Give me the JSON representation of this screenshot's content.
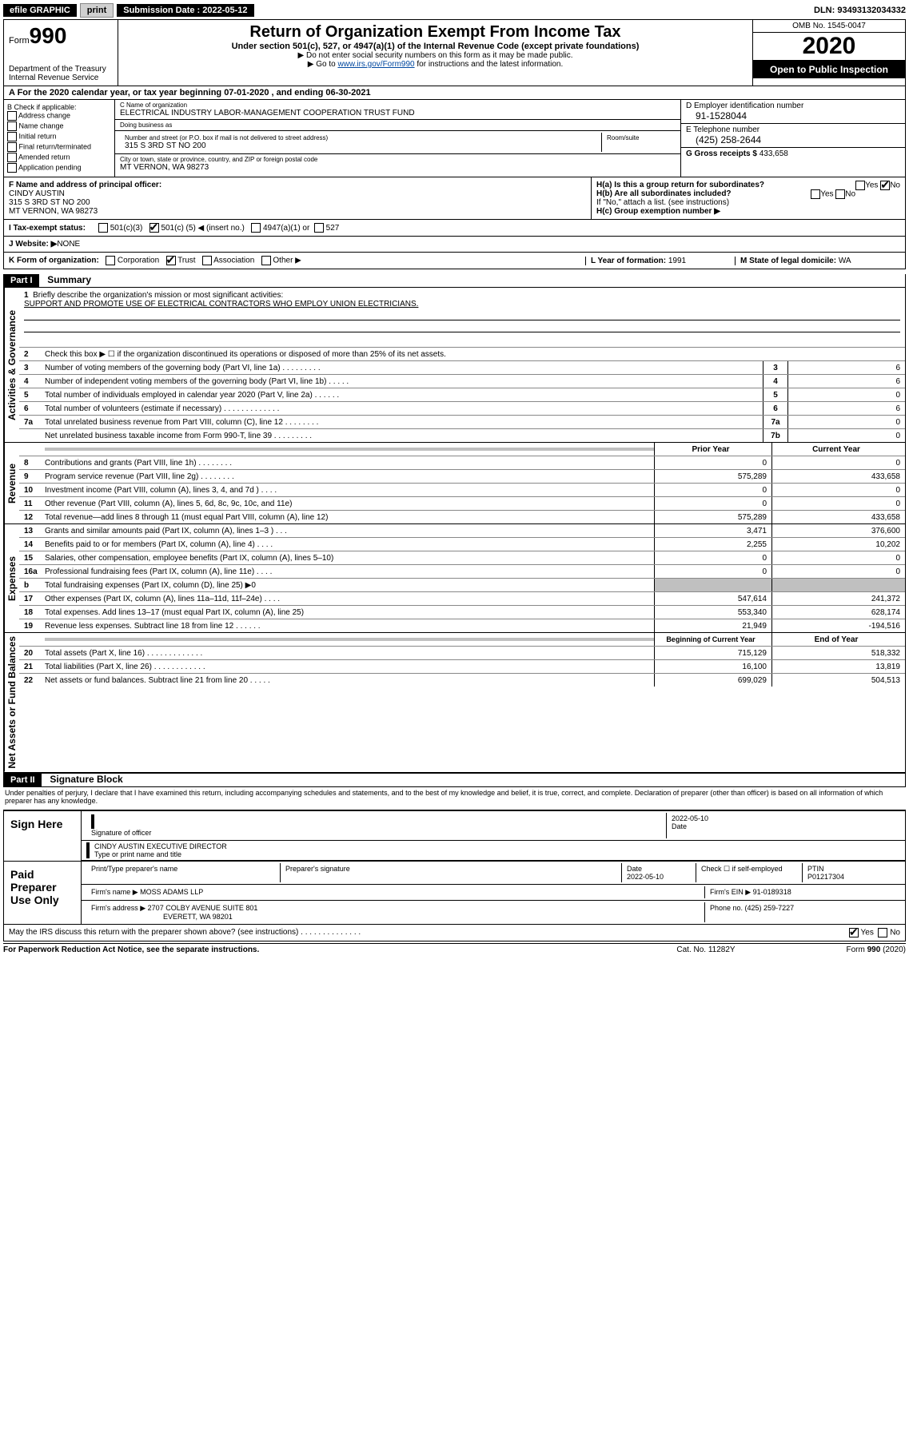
{
  "top_bar": {
    "efile_label": "efile GRAPHIC",
    "print_btn": "print",
    "submission_label": "Submission Date : 2022-05-12",
    "dln": "DLN: 93493132034332"
  },
  "header": {
    "form_prefix": "Form",
    "form_number": "990",
    "dept1": "Department of the Treasury",
    "dept2": "Internal Revenue Service",
    "main_title": "Return of Organization Exempt From Income Tax",
    "sub_title": "Under section 501(c), 527, or 4947(a)(1) of the Internal Revenue Code (except private foundations)",
    "instr1": "▶ Do not enter social security numbers on this form as it may be made public.",
    "instr2_pre": "▶ Go to ",
    "instr2_link": "www.irs.gov/Form990",
    "instr2_post": " for instructions and the latest information.",
    "omb": "OMB No. 1545-0047",
    "year": "2020",
    "inspection": "Open to Public Inspection"
  },
  "section_a": "A For the 2020 calendar year, or tax year beginning 07-01-2020     , and ending 06-30-2021",
  "box_b": {
    "label": "B Check if applicable:",
    "opt1": "Address change",
    "opt2": "Name change",
    "opt3": "Initial return",
    "opt4": "Final return/terminated",
    "opt5": "Amended return",
    "opt6": "Application pending"
  },
  "box_c": {
    "label_name": "C Name of organization",
    "org_name": "ELECTRICAL INDUSTRY LABOR-MANAGEMENT COOPERATION TRUST FUND",
    "dba_label": "Doing business as",
    "dba": "",
    "addr_label": "Number and street (or P.O. box if mail is not delivered to street address)",
    "room_label": "Room/suite",
    "addr": "315 S 3RD ST NO 200",
    "city_label": "City or town, state or province, country, and ZIP or foreign postal code",
    "city": "MT VERNON, WA  98273"
  },
  "box_d": {
    "label": "D Employer identification number",
    "ein": "91-1528044"
  },
  "box_e": {
    "label": "E Telephone number",
    "phone": "(425) 258-2644"
  },
  "box_g": {
    "label": "G Gross receipts $ ",
    "amount": "433,658"
  },
  "box_f": {
    "label": "F Name and address of principal officer:",
    "name": "CINDY AUSTIN",
    "addr1": "315 S 3RD ST NO 200",
    "addr2": "MT VERNON, WA  98273"
  },
  "box_h": {
    "ha": "H(a)  Is this a group return for subordinates?",
    "hb": "H(b)  Are all subordinates included?",
    "hb_note": "If \"No,\" attach a list. (see instructions)",
    "hc": "H(c)  Group exemption number ▶",
    "yes": "Yes",
    "no": "No"
  },
  "tax_exempt": {
    "label": "I  Tax-exempt status:",
    "opt1": "501(c)(3)",
    "opt2a": "501(c) ( ",
    "opt2b": "5",
    "opt2c": " ) ◀ (insert no.)",
    "opt3": "4947(a)(1) or",
    "opt4": "527"
  },
  "website": {
    "label": "J  Website: ▶",
    "value": "  NONE"
  },
  "kform": {
    "label": "K Form of organization:",
    "opt1": "Corporation",
    "opt2": "Trust",
    "opt3": "Association",
    "opt4": "Other ▶",
    "l_label": "L Year of formation: ",
    "l_val": "1991",
    "m_label": "M State of legal domicile: ",
    "m_val": "WA"
  },
  "part1": {
    "header": "Part I",
    "title": "Summary",
    "sections": {
      "gov": "Activities & Governance",
      "rev": "Revenue",
      "exp": "Expenses",
      "net": "Net Assets or Fund Balances"
    },
    "line1_label": "Briefly describe the organization's mission or most significant activities:",
    "line1_text": "SUPPORT AND PROMOTE USE OF ELECTRICAL CONTRACTORS WHO EMPLOY UNION ELECTRICIANS.",
    "line2": "Check this box ▶ ☐ if the organization discontinued its operations or disposed of more than 25% of its net assets.",
    "lines_single": [
      {
        "n": "3",
        "d": "Number of voting members of the governing body (Part VI, line 1a)   .    .    .    .    .    .    .    .    .",
        "b": "3",
        "v": "6"
      },
      {
        "n": "4",
        "d": "Number of independent voting members of the governing body (Part VI, line 1b)   .    .    .    .    .",
        "b": "4",
        "v": "6"
      },
      {
        "n": "5",
        "d": "Total number of individuals employed in calendar year 2020 (Part V, line 2a)   .    .    .    .    .    .",
        "b": "5",
        "v": "0"
      },
      {
        "n": "6",
        "d": "Total number of volunteers (estimate if necessary)   .    .    .    .    .    .    .    .    .    .    .    .    .",
        "b": "6",
        "v": "6"
      },
      {
        "n": "7a",
        "d": "Total unrelated business revenue from Part VIII, column (C), line 12   .    .    .    .    .    .    .    .",
        "b": "7a",
        "v": "0"
      },
      {
        "n": "  ",
        "d": "Net unrelated business taxable income from Form 990-T, line 39   .    .    .    .    .    .    .    .    .",
        "b": "7b",
        "v": "0"
      }
    ],
    "col_prior": "Prior Year",
    "col_current": "Current Year",
    "revenue_lines": [
      {
        "n": "8",
        "d": "Contributions and grants (Part VIII, line 1h)   .    .    .    .    .    .    .    .",
        "p": "0",
        "c": "0"
      },
      {
        "n": "9",
        "d": "Program service revenue (Part VIII, line 2g)   .    .    .    .    .    .    .    .",
        "p": "575,289",
        "c": "433,658"
      },
      {
        "n": "10",
        "d": "Investment income (Part VIII, column (A), lines 3, 4, and 7d )   .    .    .    .",
        "p": "0",
        "c": "0"
      },
      {
        "n": "11",
        "d": "Other revenue (Part VIII, column (A), lines 5, 6d, 8c, 9c, 10c, and 11e)",
        "p": "0",
        "c": "0"
      },
      {
        "n": "12",
        "d": "Total revenue—add lines 8 through 11 (must equal Part VIII, column (A), line 12)",
        "p": "575,289",
        "c": "433,658"
      }
    ],
    "expense_lines": [
      {
        "n": "13",
        "d": "Grants and similar amounts paid (Part IX, column (A), lines 1–3 )   .    .    .",
        "p": "3,471",
        "c": "376,600"
      },
      {
        "n": "14",
        "d": "Benefits paid to or for members (Part IX, column (A), line 4)   .    .    .    .",
        "p": "2,255",
        "c": "10,202"
      },
      {
        "n": "15",
        "d": "Salaries, other compensation, employee benefits (Part IX, column (A), lines 5–10)",
        "p": "0",
        "c": "0"
      },
      {
        "n": "16a",
        "d": "Professional fundraising fees (Part IX, column (A), line 11e)   .    .    .    .",
        "p": "0",
        "c": "0"
      },
      {
        "n": "b",
        "d": "Total fundraising expenses (Part IX, column (D), line 25) ▶0",
        "p": "",
        "c": "",
        "grey": true
      },
      {
        "n": "17",
        "d": "Other expenses (Part IX, column (A), lines 11a–11d, 11f–24e)   .    .    .    .",
        "p": "547,614",
        "c": "241,372"
      },
      {
        "n": "18",
        "d": "Total expenses. Add lines 13–17 (must equal Part IX, column (A), line 25)",
        "p": "553,340",
        "c": "628,174"
      },
      {
        "n": "19",
        "d": "Revenue less expenses. Subtract line 18 from line 12   .    .    .    .    .    .",
        "p": "21,949",
        "c": "-194,516"
      }
    ],
    "col_begin": "Beginning of Current Year",
    "col_end": "End of Year",
    "net_lines": [
      {
        "n": "20",
        "d": "Total assets (Part X, line 16)   .    .    .    .    .    .    .    .    .    .    .    .    .",
        "p": "715,129",
        "c": "518,332"
      },
      {
        "n": "21",
        "d": "Total liabilities (Part X, line 26)   .    .    .    .    .    .    .    .    .    .    .    .",
        "p": "16,100",
        "c": "13,819"
      },
      {
        "n": "22",
        "d": "Net assets or fund balances. Subtract line 21 from line 20   .    .    .    .    .",
        "p": "699,029",
        "c": "504,513"
      }
    ]
  },
  "part2": {
    "header": "Part II",
    "title": "Signature Block",
    "perjury": "Under penalties of perjury, I declare that I have examined this return, including accompanying schedules and statements, and to the best of my knowledge and belief, it is true, correct, and complete. Declaration of preparer (other than officer) is based on all information of which preparer has any knowledge.",
    "sign_here": "Sign Here",
    "sig_officer_label": "Signature of officer",
    "sig_date": "2022-05-10",
    "date_label": "Date",
    "officer_name": "CINDY AUSTIN  EXECUTIVE DIRECTOR",
    "type_label": "Type or print name and title",
    "paid_prep": "Paid Preparer Use Only",
    "prep_name_label": "Print/Type preparer's name",
    "prep_sig_label": "Preparer's signature",
    "prep_date": "2022-05-10",
    "check_self": "Check ☐ if self-employed",
    "ptin_label": "PTIN",
    "ptin": "P01217304",
    "firm_name_label": "Firm's name     ▶",
    "firm_name": "MOSS ADAMS LLP",
    "firm_ein_label": "Firm's EIN ▶",
    "firm_ein": "91-0189318",
    "firm_addr_label": "Firm's address ▶",
    "firm_addr1": "2707 COLBY AVENUE SUITE 801",
    "firm_addr2": "EVERETT, WA  98201",
    "firm_phone_label": "Phone no. ",
    "firm_phone": "(425) 259-7227",
    "discuss": "May the IRS discuss this return with the preparer shown above? (see instructions)   .    .    .    .    .    .    .    .    .    .    .    .    .    .",
    "yes": "Yes",
    "no": "No"
  },
  "footer": {
    "left": "For Paperwork Reduction Act Notice, see the separate instructions.",
    "mid": "Cat. No. 11282Y",
    "right": "Form 990 (2020)"
  }
}
